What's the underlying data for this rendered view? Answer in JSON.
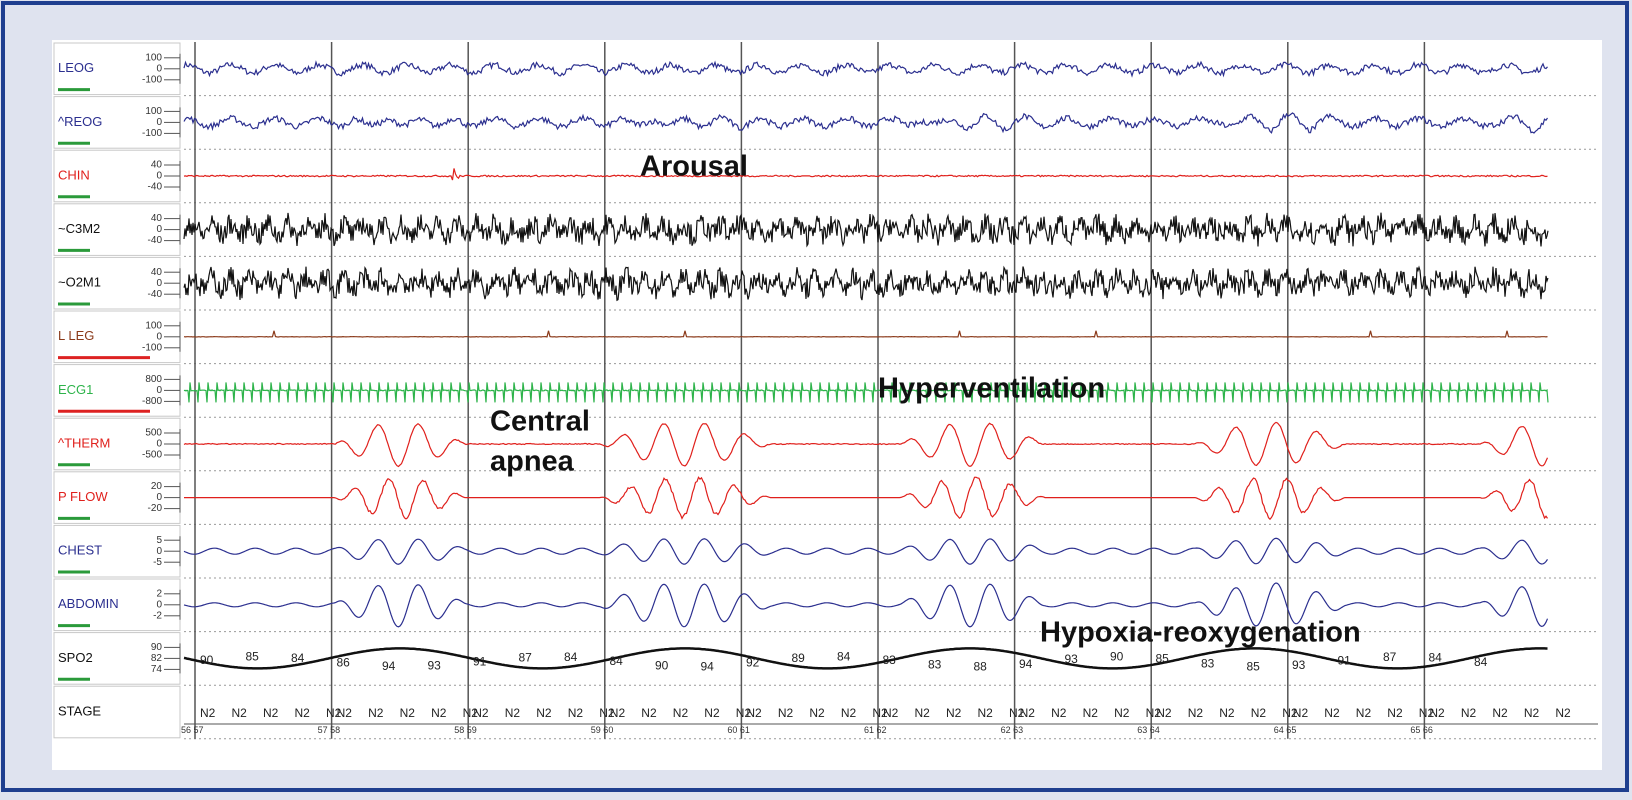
{
  "channels": [
    {
      "label": "LEOG",
      "color": "#2b2f8f",
      "scale": [
        "100",
        "0",
        "-100"
      ]
    },
    {
      "label": "^REOG",
      "color": "#2b2f8f",
      "scale": [
        "100",
        "0",
        "-100"
      ]
    },
    {
      "label": "CHIN",
      "color": "#e0201c",
      "scale": [
        "40",
        "0",
        "-40"
      ]
    },
    {
      "label": "~C3M2",
      "color": "#111111",
      "scale": [
        "40",
        "0",
        "-40"
      ]
    },
    {
      "label": "~O2M1",
      "color": "#111111",
      "scale": [
        "40",
        "0",
        "-40"
      ]
    },
    {
      "label": "L LEG",
      "color": "#8b3a1a",
      "scale": [
        "100",
        "0",
        "-100"
      ]
    },
    {
      "label": "ECG1",
      "color": "#2db34a",
      "scale": [
        "800",
        "0",
        "-800"
      ]
    },
    {
      "label": "^THERM",
      "color": "#e0201c",
      "scale": [
        "500",
        "0",
        "-500"
      ]
    },
    {
      "label": "P FLOW",
      "color": "#e0201c",
      "scale": [
        "20",
        "0",
        "-20"
      ]
    },
    {
      "label": "CHEST",
      "color": "#2b2f8f",
      "scale": [
        "5",
        "0",
        "-5"
      ]
    },
    {
      "label": "ABDOMIN",
      "color": "#2b2f8f",
      "scale": [
        "2",
        "0",
        "-2"
      ]
    },
    {
      "label": "SPO2",
      "color": "#111111",
      "scale": [
        "90",
        "82",
        "74"
      ]
    },
    {
      "label": "STAGE",
      "color": "#111111",
      "scale": []
    }
  ],
  "annotations": [
    {
      "lines": [
        "Arousal"
      ]
    },
    {
      "lines": [
        "Hyperventilation"
      ]
    },
    {
      "lines": [
        "Central",
        "apnea"
      ]
    },
    {
      "lines": [
        "Hypoxia-reoxygenation"
      ]
    }
  ],
  "spo2_values": [
    "90",
    "85",
    "84",
    "86",
    "94",
    "93",
    "91",
    "87",
    "84",
    "84",
    "90",
    "94",
    "92",
    "89",
    "84",
    "83",
    "83",
    "88",
    "94",
    "93",
    "90",
    "85",
    "83",
    "85",
    "93",
    "91",
    "87",
    "84",
    "84"
  ],
  "stage": {
    "labels": [
      "N2",
      "N2",
      "N2",
      "N2",
      "N2",
      "N2",
      "N2",
      "N2",
      "N2",
      "N2",
      "N2",
      "N2",
      "N2",
      "N2",
      "N2",
      "N2",
      "N2",
      "N2",
      "N2",
      "N2",
      "N2",
      "N2",
      "N2",
      "N2",
      "N2",
      "N2",
      "N2",
      "N2",
      "N2",
      "N2",
      "N2",
      "N2",
      "N2",
      "N2",
      "N2",
      "N2",
      "N2",
      "N2",
      "N2",
      "N2",
      "N2",
      "N2",
      "N2",
      "N2",
      "N2",
      "N2",
      "N2",
      "N2",
      "N2",
      "N2"
    ],
    "epochs": [
      "56 57",
      "57 58",
      "58 59",
      "59 60",
      "60 61",
      "61 62",
      "62 63",
      "63 64",
      "64 65",
      "65 66"
    ]
  }
}
